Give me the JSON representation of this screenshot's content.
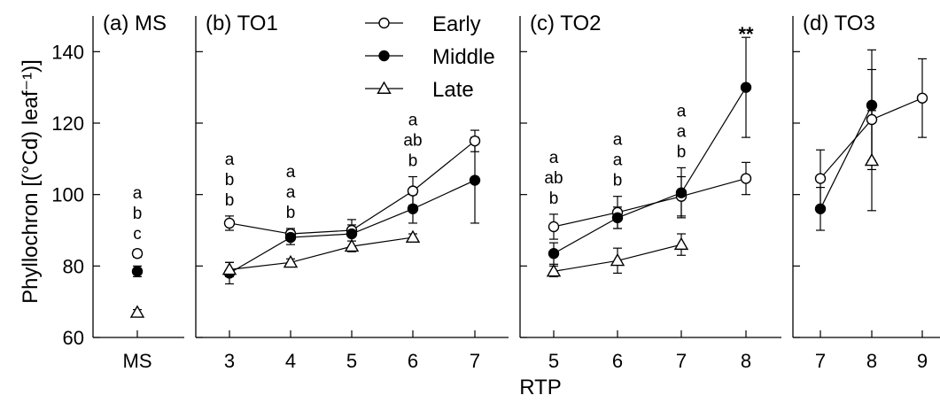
{
  "chart_data": {
    "type": "line",
    "ylabel": "Phyllochron [(°Cd) leaf⁻¹)]",
    "xlabel": "RTP",
    "ylim": [
      60,
      150
    ],
    "yticks": [
      60,
      80,
      100,
      120,
      140
    ],
    "series_names": [
      "Early",
      "Middle",
      "Late"
    ],
    "legend_placement": "top, in panel (b)",
    "grid": false,
    "panels": [
      {
        "title": "(a) MS",
        "xticks": [
          "MS"
        ],
        "series": [
          {
            "name": "Early",
            "points": [
              {
                "x": "MS",
                "y": 83.5,
                "err": 1
              }
            ]
          },
          {
            "name": "Middle",
            "points": [
              {
                "x": "MS",
                "y": 78.5,
                "err": 1.5
              }
            ]
          },
          {
            "name": "Late",
            "points": [
              {
                "x": "MS",
                "y": 67,
                "err": 0.8
              }
            ]
          }
        ],
        "annotations": [
          {
            "x": "MS",
            "text": [
              "a",
              "b",
              "c"
            ]
          }
        ]
      },
      {
        "title": "(b) TO1",
        "xticks": [
          3,
          4,
          5,
          6,
          7
        ],
        "series": [
          {
            "name": "Early",
            "points": [
              {
                "x": 3,
                "y": 92,
                "err": 2
              },
              {
                "x": 4,
                "y": 89,
                "err": 1.5
              },
              {
                "x": 5,
                "y": 90,
                "err": 1.5
              },
              {
                "x": 6,
                "y": 101,
                "err": 4
              },
              {
                "x": 7,
                "y": 115,
                "err": 3
              }
            ]
          },
          {
            "name": "Middle",
            "points": [
              {
                "x": 3,
                "y": 78,
                "err": 3
              },
              {
                "x": 4,
                "y": 88,
                "err": 2
              },
              {
                "x": 5,
                "y": 89,
                "err": 4
              },
              {
                "x": 6,
                "y": 96,
                "err": 4
              },
              {
                "x": 7,
                "y": 104,
                "err": 12
              }
            ]
          },
          {
            "name": "Late",
            "points": [
              {
                "x": 3,
                "y": 79,
                "err": 2
              },
              {
                "x": 4,
                "y": 81,
                "err": 1
              },
              {
                "x": 5,
                "y": 85.5,
                "err": 1.5
              },
              {
                "x": 6,
                "y": 88,
                "err": 1
              }
            ]
          }
        ],
        "annotations": [
          {
            "x": 3,
            "text": [
              "a",
              "b",
              "b"
            ]
          },
          {
            "x": 4,
            "text": [
              "a",
              "a",
              "b"
            ]
          },
          {
            "x": 6,
            "text": [
              "a",
              "ab",
              "b"
            ]
          }
        ]
      },
      {
        "title": "(c) TO2",
        "xticks": [
          5,
          6,
          7,
          8
        ],
        "series": [
          {
            "name": "Early",
            "points": [
              {
                "x": 5,
                "y": 91,
                "err": 3.5
              },
              {
                "x": 6,
                "y": 95,
                "err": 4.5
              },
              {
                "x": 7,
                "y": 99.5,
                "err": 5.5
              },
              {
                "x": 8,
                "y": 104.5,
                "err": 4.5
              }
            ]
          },
          {
            "name": "Middle",
            "points": [
              {
                "x": 5,
                "y": 83.5,
                "err": 3
              },
              {
                "x": 6,
                "y": 93.5,
                "err": 3
              },
              {
                "x": 7,
                "y": 100.5,
                "err": 7
              },
              {
                "x": 8,
                "y": 130,
                "err": 14
              }
            ]
          },
          {
            "name": "Late",
            "points": [
              {
                "x": 5,
                "y": 78.5,
                "err": 1.5
              },
              {
                "x": 6,
                "y": 81.5,
                "err": 3.5
              },
              {
                "x": 7,
                "y": 86,
                "err": 3
              }
            ]
          }
        ],
        "annotations": [
          {
            "x": 5,
            "text": [
              "a",
              "ab",
              "b"
            ]
          },
          {
            "x": 6,
            "text": [
              "a",
              "a",
              "b"
            ]
          },
          {
            "x": 7,
            "text": [
              "a",
              "a",
              "b"
            ]
          },
          {
            "x": 8,
            "text": [
              "**"
            ]
          }
        ]
      },
      {
        "title": "(d) TO3",
        "xticks": [
          7,
          8,
          9
        ],
        "series": [
          {
            "name": "Early",
            "points": [
              {
                "x": 7,
                "y": 104.5,
                "err": 8
              },
              {
                "x": 8,
                "y": 121,
                "err": 14
              },
              {
                "x": 9,
                "y": 127,
                "err": 11
              }
            ]
          },
          {
            "name": "Middle",
            "points": [
              {
                "x": 7,
                "y": 96,
                "err": 6
              },
              {
                "x": 8,
                "y": 125,
                "err": 15.5
              }
            ]
          },
          {
            "name": "Late",
            "points": [
              {
                "x": 8,
                "y": 109.5,
                "err": 14
              }
            ]
          }
        ],
        "annotations": []
      }
    ]
  }
}
